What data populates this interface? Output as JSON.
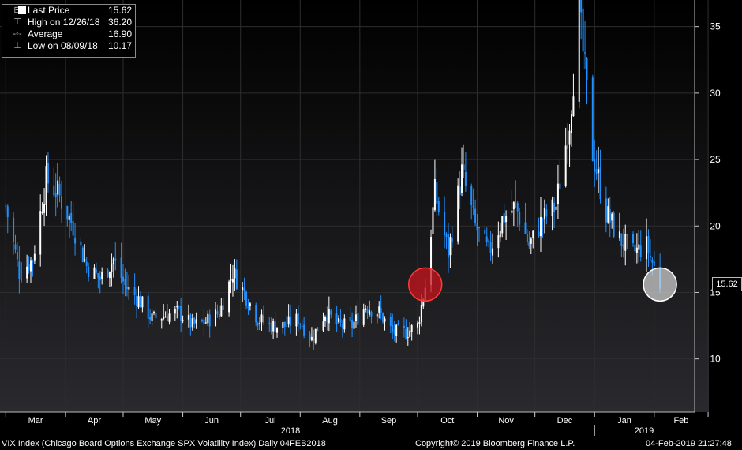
{
  "legend": {
    "last_label": "Last Price",
    "last_value": "15.62",
    "high_label": "High on 12/26/18",
    "high_value": "36.20",
    "avg_label": "Average",
    "avg_value": "16.90",
    "low_label": "Low on 08/09/18",
    "low_value": "10.17"
  },
  "footer": {
    "left": "VIX Index (Chicago Board Options Exchange SPX Volatility Index)  Daily 04FEB2018",
    "center": "Copyright© 2019 Bloomberg Finance L.P.",
    "right": "04-Feb-2019 21:27:48"
  },
  "last_price_box": "15.62",
  "colors": {
    "up": "#ffffff",
    "down": "#1e90ff",
    "grid": "#2e2e2e",
    "highlight_red": "#c8141e",
    "highlight_white": "#d8d8d8"
  },
  "chart_data": {
    "type": "candlestick",
    "title": "",
    "x_month_labels": [
      "Mar",
      "Apr",
      "May",
      "Jun",
      "Jul",
      "Aug",
      "Sep",
      "Oct",
      "Nov",
      "Dec",
      "Jan",
      "Feb"
    ],
    "x_year_labels": [
      "2018",
      "2019"
    ],
    "y_ticks": [
      10,
      15,
      20,
      25,
      30,
      35
    ],
    "ylim": [
      6,
      37
    ],
    "y_axis_side": "right",
    "grid": true,
    "legend_position": "top-left",
    "highlights": [
      {
        "date": "2018-10-05",
        "value": 15.6,
        "color": "red"
      },
      {
        "date": "2019-02-04",
        "value": 15.6,
        "color": "white"
      }
    ],
    "series": [
      {
        "points": [
          [
            "2018-03-01",
            21.5
          ],
          [
            "2018-03-08",
            16.5
          ],
          [
            "2018-03-15",
            17.5
          ],
          [
            "2018-03-22",
            23.5
          ],
          [
            "2018-03-28",
            22.5
          ],
          [
            "2018-04-05",
            20.0
          ],
          [
            "2018-04-12",
            17.0
          ],
          [
            "2018-04-19",
            16.0
          ],
          [
            "2018-04-26",
            17.5
          ],
          [
            "2018-05-02",
            15.5
          ],
          [
            "2018-05-09",
            14.5
          ],
          [
            "2018-05-16",
            13.0
          ],
          [
            "2018-05-23",
            13.3
          ],
          [
            "2018-05-30",
            13.5
          ],
          [
            "2018-06-06",
            12.5
          ],
          [
            "2018-06-13",
            12.8
          ],
          [
            "2018-06-20",
            13.5
          ],
          [
            "2018-06-27",
            16.5
          ],
          [
            "2018-07-03",
            15.0
          ],
          [
            "2018-07-10",
            13.0
          ],
          [
            "2018-07-17",
            12.5
          ],
          [
            "2018-07-24",
            12.5
          ],
          [
            "2018-07-31",
            13.0
          ],
          [
            "2018-08-07",
            11.5
          ],
          [
            "2018-08-14",
            13.5
          ],
          [
            "2018-08-21",
            12.5
          ],
          [
            "2018-08-28",
            12.5
          ],
          [
            "2018-09-04",
            14.0
          ],
          [
            "2018-09-11",
            13.5
          ],
          [
            "2018-09-18",
            12.0
          ],
          [
            "2018-09-25",
            12.0
          ],
          [
            "2018-10-01",
            12.5
          ],
          [
            "2018-10-05",
            15.5
          ],
          [
            "2018-10-10",
            22.5
          ],
          [
            "2018-10-17",
            18.0
          ],
          [
            "2018-10-24",
            24.0
          ],
          [
            "2018-10-31",
            20.0
          ],
          [
            "2018-11-07",
            18.0
          ],
          [
            "2018-11-14",
            20.5
          ],
          [
            "2018-11-21",
            21.5
          ],
          [
            "2018-11-28",
            18.5
          ],
          [
            "2018-12-05",
            20.5
          ],
          [
            "2018-12-12",
            21.5
          ],
          [
            "2018-12-19",
            28.0
          ],
          [
            "2018-12-24",
            36.0
          ],
          [
            "2018-12-31",
            25.5
          ],
          [
            "2019-01-07",
            21.0
          ],
          [
            "2019-01-14",
            19.0
          ],
          [
            "2019-01-21",
            18.0
          ],
          [
            "2019-01-28",
            18.5
          ],
          [
            "2019-02-04",
            15.62
          ]
        ]
      }
    ]
  }
}
